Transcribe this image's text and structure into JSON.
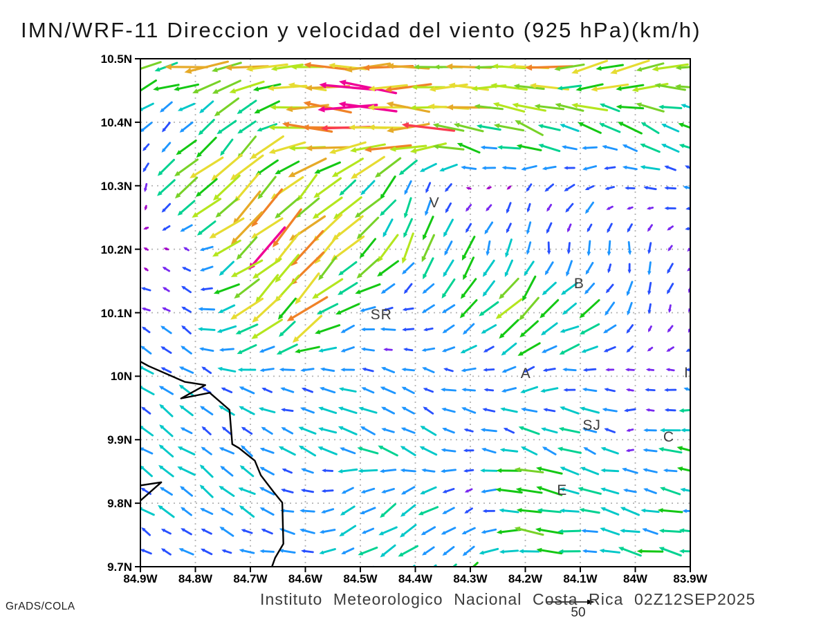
{
  "title": "IMN/WRF-11 Direccion y velocidad del viento (925 hPa)(km/h)",
  "credit": "GrADS/COLA",
  "footer": {
    "institute_line": "Instituto Meteorologico Nacional Costa Rica 02Z12SEP2025",
    "ref_value": "50"
  },
  "axes": {
    "lat_ticks": [
      "10.5N",
      "10.4N",
      "10.3N",
      "10.2N",
      "10.1N",
      "10N",
      "9.9N",
      "9.8N",
      "9.7N"
    ],
    "lon_ticks": [
      "84.9W",
      "84.8W",
      "84.7W",
      "84.6W",
      "84.5W",
      "84.4W",
      "84.3W",
      "84.2W",
      "84.1W",
      "84W",
      "83.9W"
    ]
  },
  "stations": [
    {
      "label": "V",
      "lat": 10.272,
      "lon": -84.365
    },
    {
      "label": "SR",
      "lat": 10.096,
      "lon": -84.462
    },
    {
      "label": "B",
      "lat": 10.145,
      "lon": -84.102
    },
    {
      "label": "A",
      "lat": 10.004,
      "lon": -84.199
    },
    {
      "label": "SJ",
      "lat": 9.922,
      "lon": -84.079
    },
    {
      "label": "C",
      "lat": 9.903,
      "lon": -83.939
    },
    {
      "label": "E",
      "lat": 9.82,
      "lon": -84.133
    },
    {
      "label": "I",
      "lat": 10.005,
      "lon": -83.907
    }
  ],
  "chart_data": {
    "type": "vector_field",
    "title": "IMN/WRF-11 wind direction and speed at 925 hPa",
    "units": "km/h",
    "lon_range": [
      -84.9,
      -83.9
    ],
    "lat_range": [
      9.7,
      10.5
    ],
    "grid_on": true,
    "reference_arrow_kmh": 50,
    "speed_color_scale": [
      {
        "max": 6,
        "color": "#a000c8"
      },
      {
        "max": 9,
        "color": "#7828f0"
      },
      {
        "max": 13,
        "color": "#2850ff"
      },
      {
        "max": 17,
        "color": "#1e96ff"
      },
      {
        "max": 21,
        "color": "#00c8c8"
      },
      {
        "max": 25,
        "color": "#00d291"
      },
      {
        "max": 29,
        "color": "#14c814"
      },
      {
        "max": 33,
        "color": "#78d228"
      },
      {
        "max": 38,
        "color": "#b4e61e"
      },
      {
        "max": 43,
        "color": "#e6dc32"
      },
      {
        "max": 47,
        "color": "#e6aa28"
      },
      {
        "max": 52,
        "color": "#f08228"
      },
      {
        "max": 57,
        "color": "#fa3c50"
      },
      {
        "max": 999,
        "color": "#f00096"
      }
    ],
    "control_grid": {
      "lons": [
        -84.9,
        -84.8,
        -84.7,
        -84.6,
        -84.5,
        -84.4,
        -84.3,
        -84.2,
        -84.1,
        -84.0,
        -83.9
      ],
      "lats": [
        10.5,
        10.4,
        10.3,
        10.2,
        10.1,
        10.0,
        9.9,
        9.8,
        9.7
      ],
      "u_kmh": [
        [
          -30,
          -38,
          -42,
          -45,
          -40,
          -35,
          -38,
          -38,
          -40,
          -35,
          -30
        ],
        [
          -12,
          -10,
          -18,
          -45,
          -55,
          -50,
          -35,
          -30,
          -25,
          -22,
          -22
        ],
        [
          2,
          -30,
          -30,
          -25,
          -20,
          -5,
          -4,
          -5,
          -12,
          -12,
          -12
        ],
        [
          -4,
          -5,
          -35,
          -32,
          -25,
          -10,
          -8,
          -3,
          0,
          0,
          -8
        ],
        [
          -10,
          -10,
          -28,
          -30,
          -15,
          -10,
          -15,
          -20,
          -22,
          -3,
          -3
        ],
        [
          -12,
          -12,
          -14,
          -16,
          -12,
          -10,
          -13,
          -12,
          -15,
          -8,
          -10
        ],
        [
          -12,
          -12,
          -12,
          -14,
          -18,
          -16,
          -12,
          -18,
          -18,
          -8,
          -25
        ],
        [
          -13,
          -13,
          -14,
          -15,
          -15,
          -18,
          -8,
          -28,
          -25,
          -18,
          -18
        ],
        [
          -12,
          -12,
          -13,
          -16,
          -14,
          -12,
          -15,
          -25,
          -15,
          -20,
          -25
        ]
      ],
      "v_kmh": [
        [
          -10,
          -3,
          -5,
          -3,
          -2,
          0,
          -2,
          -5,
          -8,
          -8,
          -10
        ],
        [
          -10,
          -12,
          -15,
          5,
          3,
          0,
          8,
          10,
          8,
          10,
          10
        ],
        [
          -8,
          -25,
          -28,
          -25,
          -20,
          -18,
          2,
          -5,
          -8,
          2,
          2
        ],
        [
          2,
          3,
          -30,
          -32,
          -25,
          -22,
          -20,
          -15,
          -12,
          -12,
          -6
        ],
        [
          5,
          6,
          -22,
          -25,
          -3,
          -2,
          -15,
          -20,
          -12,
          -12,
          -10
        ],
        [
          8,
          8,
          3,
          2,
          2,
          4,
          2,
          -8,
          3,
          0,
          2
        ],
        [
          8,
          8,
          8,
          6,
          8,
          10,
          2,
          8,
          8,
          -2,
          2
        ],
        [
          9,
          9,
          8,
          2,
          -10,
          -10,
          -3,
          3,
          3,
          6,
          3
        ],
        [
          8,
          4,
          3,
          2,
          -8,
          -12,
          -15,
          5,
          2,
          4,
          4
        ]
      ]
    },
    "coastlines": [
      [
        [
          -84.9,
          10.023
        ],
        [
          -84.885,
          10.016
        ],
        [
          -84.819,
          9.991
        ],
        [
          -84.782,
          9.986
        ],
        [
          -84.826,
          9.965
        ],
        [
          -84.774,
          9.974
        ],
        [
          -84.738,
          9.947
        ],
        [
          -84.733,
          9.893
        ],
        [
          -84.721,
          9.887
        ],
        [
          -84.692,
          9.867
        ],
        [
          -84.681,
          9.844
        ],
        [
          -84.658,
          9.818
        ],
        [
          -84.642,
          9.801
        ],
        [
          -84.64,
          9.736
        ],
        [
          -84.655,
          9.714
        ],
        [
          -84.662,
          9.697
        ]
      ],
      [
        [
          -84.9,
          9.828
        ],
        [
          -84.862,
          9.833
        ],
        [
          -84.9,
          9.804
        ]
      ]
    ],
    "colors": {
      "gridline": "#b2b2b2",
      "frame": "#000000",
      "coastline": "#000000",
      "reference_arrow": "#000000"
    }
  }
}
